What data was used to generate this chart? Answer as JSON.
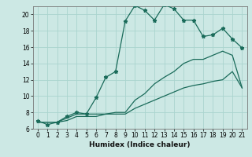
{
  "xlabel": "Humidex (Indice chaleur)",
  "background_color": "#cce8e4",
  "grid_color": "#aad4ce",
  "line_color": "#1a6b5a",
  "xlim": [
    -0.5,
    21.5
  ],
  "ylim": [
    6,
    21
  ],
  "yticks": [
    6,
    8,
    10,
    12,
    14,
    16,
    18,
    20
  ],
  "xticks": [
    0,
    1,
    2,
    3,
    4,
    5,
    6,
    7,
    8,
    9,
    10,
    11,
    12,
    13,
    14,
    15,
    16,
    17,
    18,
    19,
    20,
    21
  ],
  "series1_x": [
    0,
    1,
    2,
    3,
    4,
    5,
    6,
    7,
    8,
    9,
    10,
    11,
    12,
    13,
    14,
    15,
    16,
    17,
    18,
    19,
    20,
    21
  ],
  "series1_y": [
    7.0,
    6.5,
    6.8,
    7.5,
    8.0,
    7.8,
    9.8,
    12.3,
    13.0,
    19.2,
    21.1,
    20.5,
    19.3,
    21.2,
    20.7,
    19.3,
    19.3,
    17.3,
    17.5,
    18.3,
    17.0,
    15.9
  ],
  "series2_x": [
    0,
    1,
    2,
    3,
    4,
    5,
    6,
    7,
    8,
    9,
    10,
    11,
    12,
    13,
    14,
    15,
    16,
    17,
    18,
    19,
    20,
    21
  ],
  "series2_y": [
    6.8,
    6.8,
    6.8,
    7.3,
    7.8,
    7.8,
    7.8,
    7.8,
    8.0,
    8.0,
    9.5,
    10.3,
    11.5,
    12.3,
    13.0,
    14.0,
    14.5,
    14.5,
    15.0,
    15.5,
    15.0,
    11.0
  ],
  "series3_x": [
    0,
    1,
    2,
    3,
    4,
    5,
    6,
    7,
    8,
    9,
    10,
    11,
    12,
    13,
    14,
    15,
    16,
    17,
    18,
    19,
    20,
    21
  ],
  "series3_y": [
    6.8,
    6.8,
    6.8,
    7.0,
    7.5,
    7.5,
    7.5,
    7.8,
    7.8,
    7.8,
    8.5,
    9.0,
    9.5,
    10.0,
    10.5,
    11.0,
    11.3,
    11.5,
    11.8,
    12.0,
    13.0,
    11.0
  ],
  "tick_fontsize": 5.5,
  "xlabel_fontsize": 6.5
}
